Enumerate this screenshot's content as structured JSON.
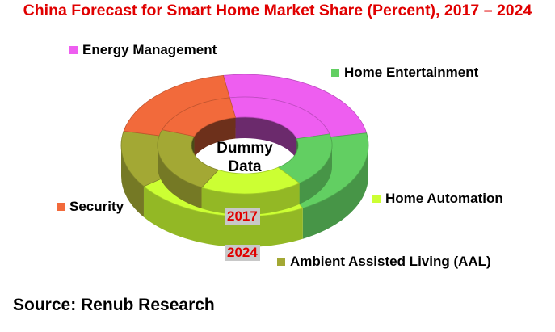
{
  "chart_data": {
    "type": "pie",
    "subtype": "3d-nested-donut",
    "title": "China Forecast for Smart Home Market Share (Percent), 2017 – 2024",
    "center_label": [
      "Dummy",
      "Data"
    ],
    "rings": [
      {
        "name": "2017",
        "position": "inner"
      },
      {
        "name": "2024",
        "position": "outer"
      }
    ],
    "categories": [
      "Energy Management",
      "Home Entertainment",
      "Home Automation",
      "Ambient Assisted Living (AAL)",
      "Security"
    ],
    "colors": {
      "Energy Management": "#ee5ef0",
      "Home Entertainment": "#62cf62",
      "Home Automation": "#ccff33",
      "Ambient Assisted Living (AAL)": "#a3a834",
      "Security": "#f26a3b"
    },
    "series": [
      {
        "name": "2017",
        "values": [
          24,
          18,
          19,
          22,
          17
        ]
      },
      {
        "name": "2024",
        "values": [
          25,
          20,
          23,
          13,
          19
        ]
      }
    ],
    "legend": [
      {
        "label": "Energy Management",
        "color": "#ee5ef0"
      },
      {
        "label": "Home Entertainment",
        "color": "#62cf62"
      },
      {
        "label": "Home Automation",
        "color": "#ccff33"
      },
      {
        "label": "Ambient Assisted Living (AAL)",
        "color": "#a3a834"
      },
      {
        "label": "Security",
        "color": "#f26a3b"
      }
    ]
  },
  "source": "Source: Renub Research"
}
